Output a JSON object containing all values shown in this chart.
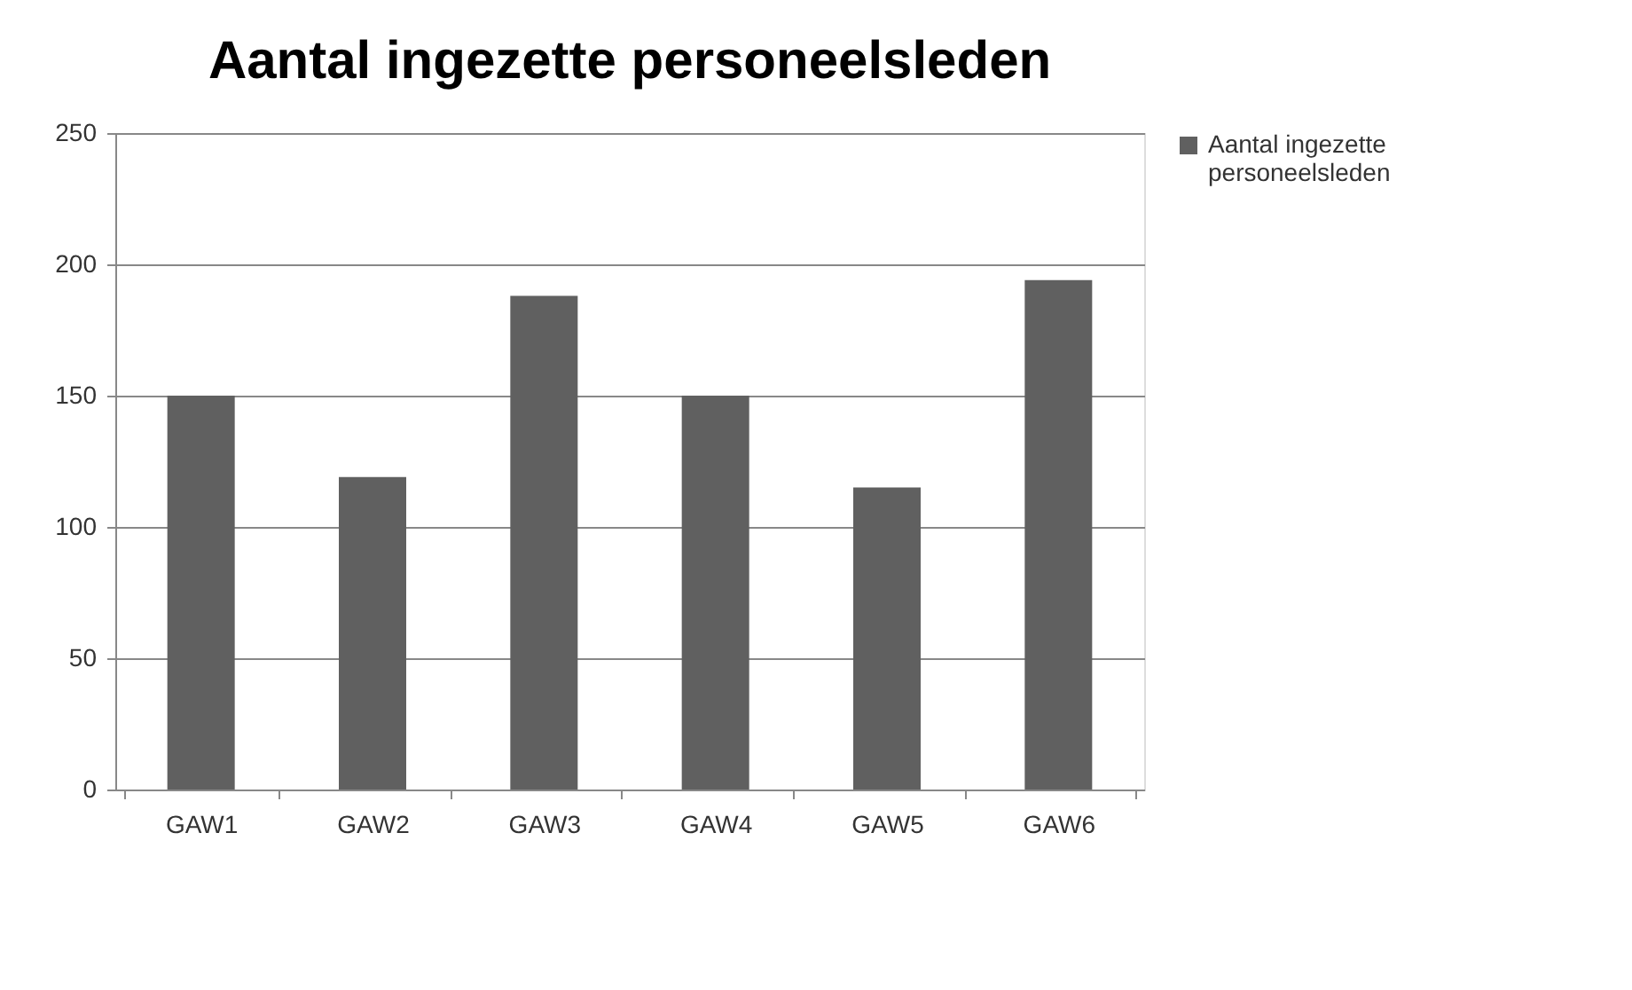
{
  "chart_data": {
    "type": "bar",
    "title": "Aantal ingezette personeelsleden",
    "categories": [
      "GAW1",
      "GAW2",
      "GAW3",
      "GAW4",
      "GAW5",
      "GAW6"
    ],
    "series": [
      {
        "name": "Aantal ingezette personeelsleden",
        "color": "#606060",
        "values": [
          150,
          119,
          188,
          150,
          115,
          194
        ]
      }
    ],
    "ylim": [
      0,
      250
    ],
    "yticks": [
      0,
      50,
      100,
      150,
      200,
      250
    ],
    "grid": "y",
    "legend": "right"
  }
}
